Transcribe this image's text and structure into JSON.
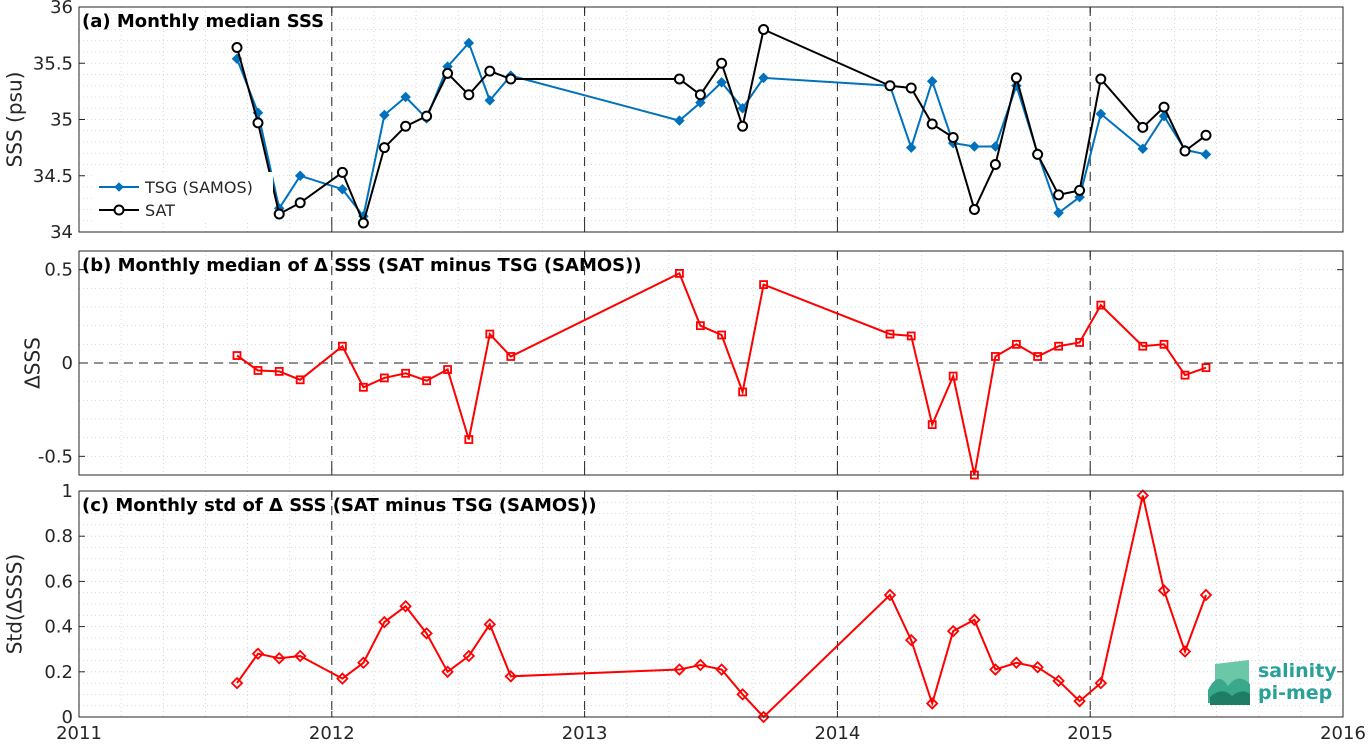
{
  "chart_data": [
    {
      "type": "line",
      "title": "(a) Monthly median SSS",
      "xlabel": "",
      "ylabel": "SSS (psu)",
      "ylim": [
        34,
        36
      ],
      "yticks": [
        "34",
        "34.5",
        "35",
        "35.5",
        "36"
      ],
      "xlim": [
        2011,
        2016
      ],
      "xticks": [
        "2011",
        "2012",
        "2013",
        "2014",
        "2015",
        "2016"
      ],
      "grid": true,
      "legend": "left",
      "series": [
        {
          "name": "TSG (SAMOS)",
          "color": "#0072bd",
          "marker": "diamond",
          "x": [
            2011.625,
            2011.708,
            2011.792,
            2011.875,
            2012.042,
            2012.125,
            2012.208,
            2012.292,
            2012.375,
            2012.458,
            2012.542,
            2012.625,
            2012.708,
            2013.375,
            2013.458,
            2013.542,
            2013.625,
            2013.708,
            2014.208,
            2014.292,
            2014.375,
            2014.458,
            2014.542,
            2014.625,
            2014.708,
            2014.792,
            2014.875,
            2014.958,
            2015.042,
            2015.208,
            2015.292,
            2015.375,
            2015.458
          ],
          "y": [
            35.54,
            35.06,
            34.21,
            34.5,
            34.38,
            34.14,
            35.04,
            35.2,
            35.01,
            35.47,
            35.68,
            35.17,
            35.39,
            34.99,
            35.15,
            35.33,
            35.1,
            35.37,
            35.3,
            34.75,
            35.34,
            34.79,
            34.76,
            34.76,
            35.3,
            34.7,
            34.17,
            34.31,
            35.05,
            34.74,
            35.03,
            34.73,
            34.69
          ]
        },
        {
          "name": "SAT",
          "color": "#000000",
          "marker": "circle",
          "x": [
            2011.625,
            2011.708,
            2011.792,
            2011.875,
            2012.042,
            2012.125,
            2012.208,
            2012.292,
            2012.375,
            2012.458,
            2012.542,
            2012.625,
            2012.708,
            2013.375,
            2013.458,
            2013.542,
            2013.625,
            2013.708,
            2014.208,
            2014.292,
            2014.375,
            2014.458,
            2014.542,
            2014.625,
            2014.708,
            2014.792,
            2014.875,
            2014.958,
            2015.042,
            2015.208,
            2015.292,
            2015.375,
            2015.458
          ],
          "y": [
            35.64,
            34.97,
            34.16,
            34.26,
            34.53,
            34.08,
            34.75,
            34.94,
            35.03,
            35.41,
            35.22,
            35.43,
            35.36,
            35.36,
            35.22,
            35.5,
            34.94,
            35.8,
            35.3,
            35.28,
            34.96,
            34.84,
            34.2,
            34.6,
            35.37,
            34.69,
            34.33,
            34.37,
            35.36,
            34.93,
            35.11,
            34.72,
            34.86
          ]
        }
      ]
    },
    {
      "type": "line",
      "title": "(b) Monthly median of Δ SSS (SAT minus TSG (SAMOS))",
      "xlabel": "",
      "ylabel": "ΔSSS",
      "ylim": [
        -0.6,
        0.6
      ],
      "yticks": [
        "-0.5",
        "0",
        "0.5"
      ],
      "ytick_values": [
        -0.5,
        0,
        0.5
      ],
      "xlim": [
        2011,
        2016
      ],
      "grid": true,
      "series": [
        {
          "color": "#ff0000",
          "marker": "square",
          "x": [
            2011.625,
            2011.708,
            2011.792,
            2011.875,
            2012.042,
            2012.125,
            2012.208,
            2012.292,
            2012.375,
            2012.458,
            2012.542,
            2012.625,
            2012.708,
            2013.375,
            2013.458,
            2013.542,
            2013.625,
            2013.708,
            2014.208,
            2014.292,
            2014.375,
            2014.458,
            2014.542,
            2014.625,
            2014.708,
            2014.792,
            2014.875,
            2014.958,
            2015.042,
            2015.208,
            2015.292,
            2015.375,
            2015.458
          ],
          "y": [
            0.04,
            -0.04,
            -0.045,
            -0.09,
            0.09,
            -0.13,
            -0.08,
            -0.055,
            -0.095,
            -0.035,
            -0.41,
            0.155,
            0.035,
            0.48,
            0.2,
            0.15,
            -0.155,
            0.42,
            0.155,
            0.145,
            -0.33,
            -0.07,
            -0.6,
            0.035,
            0.1,
            0.035,
            0.09,
            0.11,
            0.31,
            0.09,
            0.1,
            -0.065,
            -0.025
          ]
        }
      ]
    },
    {
      "type": "line",
      "title": "(c) Monthly std of Δ SSS (SAT minus TSG (SAMOS))",
      "xlabel": "",
      "ylabel": "Std(ΔSSS)",
      "ylim": [
        0,
        1
      ],
      "yticks": [
        "0",
        "0.2",
        "0.4",
        "0.6",
        "0.8",
        "1"
      ],
      "ytick_values": [
        0,
        0.2,
        0.4,
        0.6,
        0.8,
        1
      ],
      "xlim": [
        2011,
        2016
      ],
      "grid": true,
      "series": [
        {
          "color": "#ff0000",
          "marker": "diamond",
          "x": [
            2011.625,
            2011.708,
            2011.792,
            2011.875,
            2012.042,
            2012.125,
            2012.208,
            2012.292,
            2012.375,
            2012.458,
            2012.542,
            2012.625,
            2012.708,
            2013.375,
            2013.458,
            2013.542,
            2013.625,
            2013.708,
            2014.208,
            2014.292,
            2014.375,
            2014.458,
            2014.542,
            2014.625,
            2014.708,
            2014.792,
            2014.875,
            2014.958,
            2015.042,
            2015.208,
            2015.292,
            2015.375,
            2015.458
          ],
          "y": [
            0.15,
            0.28,
            0.26,
            0.27,
            0.17,
            0.24,
            0.42,
            0.49,
            0.37,
            0.2,
            0.27,
            0.41,
            0.18,
            0.21,
            0.23,
            0.21,
            0.1,
            0.0,
            0.54,
            0.34,
            0.06,
            0.38,
            0.43,
            0.21,
            0.24,
            0.22,
            0.16,
            0.07,
            0.15,
            0.98,
            0.56,
            0.29,
            0.54
          ]
        }
      ]
    }
  ],
  "logo": {
    "line1": "salinity",
    "line2": "pi-mep",
    "color": "#2aa198"
  }
}
